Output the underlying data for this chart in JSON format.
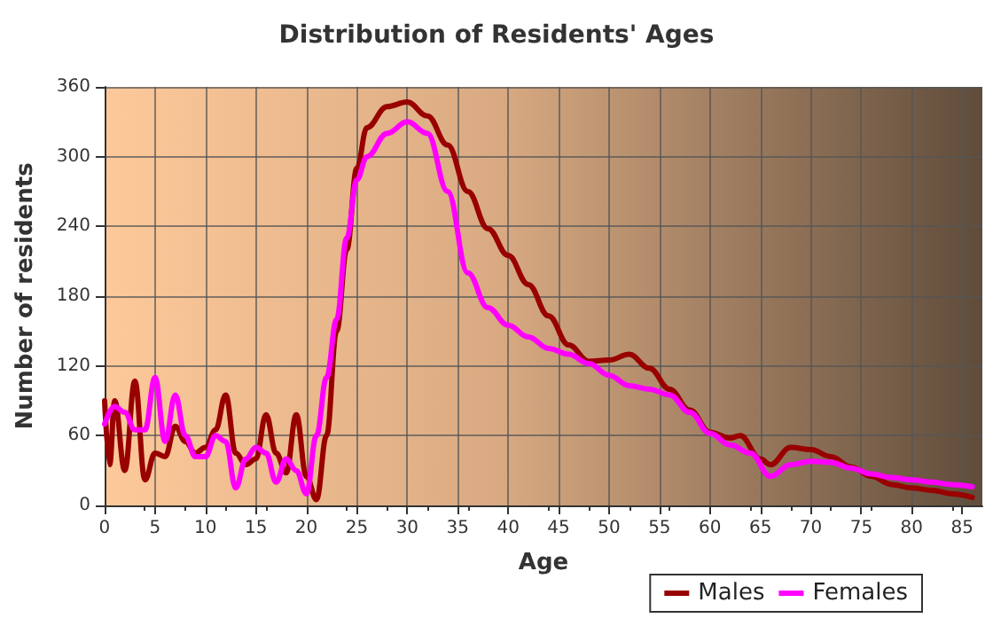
{
  "chart_data": {
    "type": "line",
    "title": "Distribution of Residents' Ages",
    "xlabel": "Age",
    "ylabel": "Number of residents",
    "xlim": [
      0,
      87
    ],
    "xticks": [
      0,
      5,
      10,
      15,
      20,
      25,
      30,
      35,
      40,
      45,
      50,
      55,
      60,
      65,
      70,
      75,
      80,
      85
    ],
    "ylim": [
      0,
      360
    ],
    "yticks": [
      0,
      60,
      120,
      180,
      240,
      300,
      360
    ],
    "grid": true,
    "legend": "bottom",
    "marker": "none",
    "line_style": "solid",
    "series": [
      {
        "name": "Males",
        "color": "#990000",
        "x": [
          0,
          0.5,
          1,
          2,
          3,
          4,
          5,
          6,
          7,
          8,
          9,
          10,
          11,
          12,
          13,
          14,
          15,
          16,
          17,
          18,
          19,
          20,
          21,
          22,
          23,
          24,
          25,
          26,
          28,
          30,
          32,
          34,
          36,
          38,
          40,
          42,
          44,
          46,
          48,
          50,
          52,
          54,
          56,
          58,
          60,
          62,
          63,
          65,
          66,
          68,
          70,
          72,
          74,
          76,
          78,
          80,
          82,
          84,
          86
        ],
        "values": [
          90,
          35,
          90,
          30,
          107,
          22,
          45,
          42,
          68,
          55,
          45,
          50,
          65,
          95,
          45,
          35,
          40,
          78,
          45,
          28,
          78,
          25,
          5,
          60,
          150,
          220,
          290,
          325,
          343,
          347,
          335,
          310,
          270,
          238,
          215,
          190,
          163,
          138,
          124,
          125,
          130,
          118,
          100,
          82,
          63,
          58,
          60,
          40,
          35,
          50,
          48,
          42,
          33,
          25,
          18,
          15,
          13,
          10,
          7
        ]
      },
      {
        "name": "Females",
        "color": "#ff00ff",
        "x": [
          0,
          1,
          2,
          3,
          4,
          5,
          6,
          7,
          8,
          9,
          10,
          11,
          12,
          13,
          14,
          15,
          16,
          17,
          18,
          19,
          20,
          21,
          22,
          23,
          24,
          25,
          26,
          28,
          30,
          32,
          34,
          36,
          38,
          40,
          42,
          44,
          46,
          48,
          50,
          52,
          54,
          56,
          58,
          60,
          62,
          64,
          66,
          68,
          70,
          72,
          74,
          76,
          78,
          80,
          82,
          84,
          86
        ],
        "values": [
          70,
          85,
          80,
          65,
          65,
          110,
          55,
          95,
          60,
          42,
          42,
          60,
          55,
          15,
          40,
          50,
          45,
          20,
          40,
          30,
          10,
          60,
          110,
          160,
          230,
          280,
          300,
          320,
          330,
          320,
          270,
          200,
          170,
          155,
          145,
          135,
          130,
          122,
          112,
          103,
          100,
          95,
          80,
          62,
          52,
          45,
          25,
          35,
          38,
          37,
          32,
          27,
          24,
          22,
          20,
          18,
          16
        ]
      }
    ]
  }
}
